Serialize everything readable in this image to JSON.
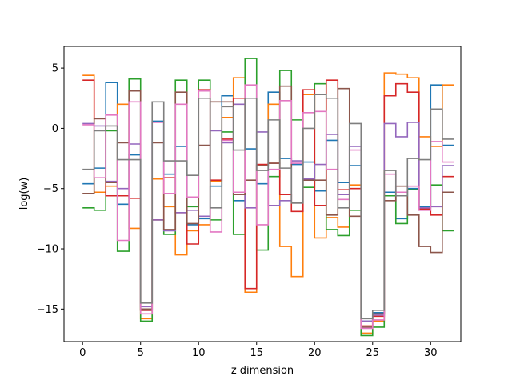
{
  "chart_data": {
    "type": "line",
    "step": "post",
    "xlabel": "z dimension",
    "ylabel": "log(w)",
    "xlim": [
      -1.6,
      32.6
    ],
    "ylim": [
      -17.7,
      6.8
    ],
    "xticks": [
      0,
      5,
      10,
      15,
      20,
      25,
      30
    ],
    "yticks": [
      5,
      0,
      -5,
      -10,
      -15
    ],
    "x": [
      0,
      1,
      2,
      3,
      4,
      5,
      6,
      7,
      8,
      9,
      10,
      11,
      12,
      13,
      14,
      15,
      16,
      17,
      18,
      19,
      20,
      21,
      22,
      23,
      24,
      25,
      26,
      27,
      28,
      29,
      30,
      31
    ],
    "series": [
      {
        "color": "#1f77b4",
        "values": [
          -4.6,
          -3.3,
          3.8,
          -6.3,
          -2.2,
          -15.1,
          0.6,
          -3.8,
          -1.5,
          -8.0,
          -7.5,
          -4.8,
          2.7,
          -6.0,
          -1.7,
          -4.6,
          3.0,
          -2.5,
          -3.0,
          -2.8,
          -5.2,
          -1.0,
          -4.5,
          -3.1,
          -16.0,
          -15.3,
          -5.3,
          -7.5,
          -5.0,
          -6.5,
          3.6,
          -1.4
        ]
      },
      {
        "color": "#ff7f0e",
        "values": [
          4.4,
          -5.3,
          -4.8,
          2.0,
          -8.3,
          -15.8,
          -4.2,
          -6.5,
          -10.5,
          -8.5,
          -8.0,
          -4.4,
          0.9,
          4.2,
          -13.6,
          -3.1,
          2.0,
          -9.8,
          -12.3,
          2.8,
          -9.1,
          -7.4,
          -8.2,
          -4.7,
          -17.0,
          -16.0,
          4.6,
          4.5,
          4.2,
          -0.7,
          -1.5,
          3.6
        ]
      },
      {
        "color": "#2ca02c",
        "values": [
          -6.6,
          -6.8,
          -0.2,
          -10.2,
          4.1,
          -16.0,
          -7.6,
          -8.8,
          4.0,
          -6.5,
          4.0,
          -7.6,
          -0.3,
          -8.8,
          5.8,
          -10.1,
          -4.0,
          4.8,
          0.7,
          -4.9,
          3.7,
          -8.4,
          -8.9,
          -6.8,
          -17.2,
          -16.5,
          -5.6,
          -7.9,
          -5.1,
          -6.6,
          -4.7,
          -8.5
        ]
      },
      {
        "color": "#d62728",
        "values": [
          4.0,
          0.8,
          -5.6,
          -5.6,
          -5.8,
          -15.1,
          -7.6,
          -4.1,
          -7.0,
          -9.6,
          3.2,
          -4.3,
          -0.9,
          2.5,
          -13.3,
          -3.0,
          -2.9,
          -5.5,
          -6.9,
          3.2,
          -6.4,
          4.0,
          -5.1,
          -5.0,
          -16.4,
          -15.6,
          2.7,
          3.7,
          3.0,
          -6.7,
          -7.2,
          -4.0
        ]
      },
      {
        "color": "#9467bd",
        "values": [
          0.4,
          0.2,
          -4.4,
          -5.0,
          -1.3,
          -14.8,
          -7.6,
          -8.5,
          -7.0,
          -6.8,
          -7.3,
          -0.2,
          -1.2,
          2.0,
          -6.6,
          -0.3,
          -6.4,
          -6.0,
          -2.7,
          -4.2,
          -3.0,
          -0.5,
          -5.5,
          -1.5,
          -16.0,
          -15.5,
          0.4,
          -0.7,
          0.5,
          -6.6,
          -6.5,
          -3.1
        ]
      },
      {
        "color": "#8c564b",
        "values": [
          -5.4,
          0.8,
          -4.5,
          -1.2,
          3.1,
          -15.0,
          -1.2,
          -8.4,
          3.0,
          -7.9,
          -1.4,
          2.2,
          2.2,
          -5.5,
          -4.3,
          -3.1,
          -2.9,
          3.5,
          -6.2,
          -4.3,
          -4.3,
          -7.2,
          3.3,
          -7.3,
          -16.5,
          -15.4,
          -6.0,
          -4.8,
          -7.2,
          -9.8,
          -10.3,
          -5.3
        ]
      },
      {
        "color": "#e377c2",
        "values": [
          0.3,
          -4.1,
          1.1,
          -9.3,
          2.2,
          -15.4,
          0.5,
          -5.4,
          2.0,
          -5.7,
          3.1,
          -8.6,
          -1.0,
          -5.3,
          3.6,
          -8.0,
          -3.4,
          2.3,
          -2.9,
          1.3,
          1.4,
          -3.4,
          -5.9,
          -1.8,
          -16.6,
          -15.9,
          -3.8,
          -5.3,
          -4.8,
          -6.8,
          -1.1,
          -2.8
        ]
      },
      {
        "color": "#7f7f7f",
        "values": [
          -3.4,
          -0.2,
          0.2,
          -2.6,
          -2.6,
          -14.5,
          2.2,
          -2.7,
          -2.7,
          -3.9,
          2.5,
          -6.6,
          1.8,
          -1.8,
          2.5,
          -3.5,
          0.7,
          -3.3,
          -6.2,
          0.0,
          2.8,
          2.5,
          -6.6,
          0.4,
          -15.8,
          -15.1,
          -3.5,
          -5.6,
          -2.5,
          -2.6,
          1.6,
          -0.9
        ]
      }
    ]
  }
}
